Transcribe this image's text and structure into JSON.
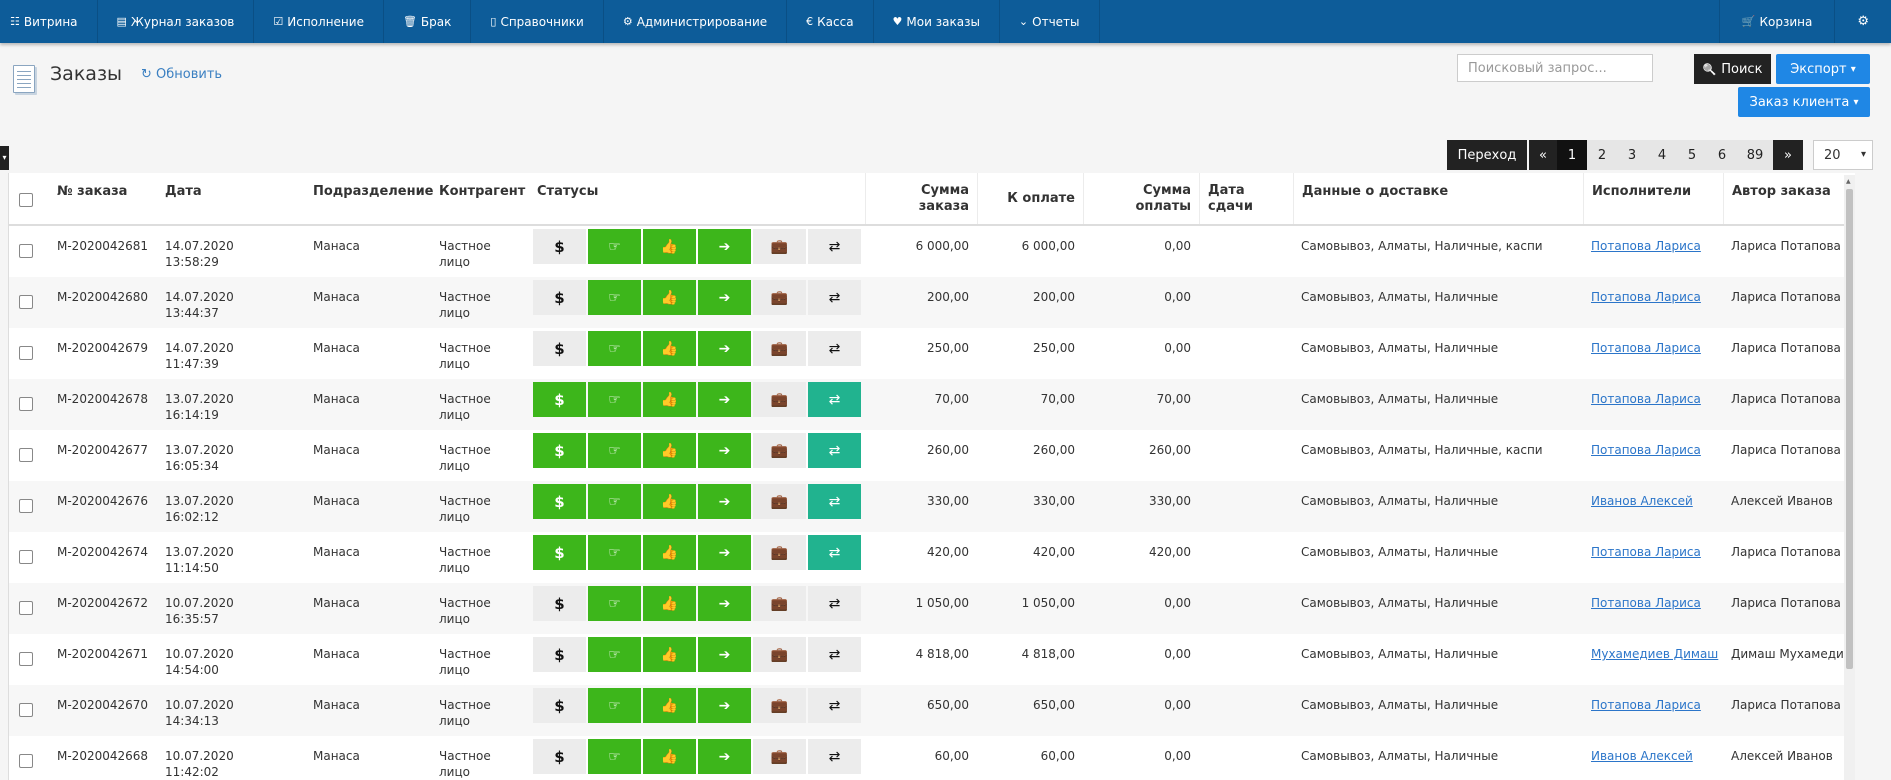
{
  "navbar": {
    "items": [
      {
        "icon": "grid-icon",
        "glyph": "☷",
        "label": "Витрина"
      },
      {
        "icon": "list-icon",
        "glyph": "▤",
        "label": "Журнал заказов"
      },
      {
        "icon": "check-square-icon",
        "glyph": "☑",
        "label": "Исполнение"
      },
      {
        "icon": "trash-icon",
        "glyph": "🗑",
        "label": "Брак"
      },
      {
        "icon": "book-icon",
        "glyph": "▯",
        "label": "Справочники"
      },
      {
        "icon": "gear-icon",
        "glyph": "⚙",
        "label": "Администрирование"
      },
      {
        "icon": "euro-icon",
        "glyph": "€",
        "label": "Касса"
      },
      {
        "icon": "heart-icon",
        "glyph": "♥",
        "label": "Мои заказы"
      },
      {
        "icon": "chevron-down-icon",
        "glyph": "⌄",
        "label": "Отчеты"
      }
    ],
    "cart_label": "Корзина",
    "cart_glyph": "🛒",
    "settings_glyph": "⚙"
  },
  "header": {
    "title": "Заказы",
    "refresh_label": "Обновить",
    "refresh_glyph": "↻",
    "search_placeholder": "Поисковый запрос...",
    "search_label": "Поиск",
    "search_glyph": "🔍",
    "export_label": "Экспорт",
    "client_order_label": "Заказ клиента",
    "caret_glyph": "▾"
  },
  "pagination": {
    "goto_label": "Переход",
    "prev_label": "«",
    "next_label": "»",
    "pages": [
      "1",
      "2",
      "3",
      "4",
      "5",
      "6",
      "89"
    ],
    "current_page": "1",
    "page_size": "20",
    "left_tab_glyph": "▾"
  },
  "table": {
    "headers": {
      "number": "№ заказа",
      "date": "Дата",
      "division": "Подразделение",
      "counterparty": "Контрагент",
      "statuses": "Статусы",
      "sum": "Сумма заказа",
      "to_pay": "К оплате",
      "paid": "Сумма оплаты",
      "due_date": "Дата сдачи",
      "delivery": "Данные о доставке",
      "executors": "Исполнители",
      "author": "Автор заказа"
    },
    "status_glyphs": [
      "$",
      "☞",
      "👍",
      "➔",
      "💼",
      "⇄"
    ],
    "rows": [
      {
        "number": "М-2020042681",
        "date": "14.07.2020",
        "time": "13:58:29",
        "division": "Манаса",
        "counterparty": "Частное лицо",
        "statuses": [
          "gray",
          "green",
          "green",
          "green",
          "gray",
          "gray"
        ],
        "sum": "6 000,00",
        "to_pay": "6 000,00",
        "paid": "0,00",
        "due_date": "",
        "delivery": "Самовывоз, Алматы, Наличные, каспи",
        "executor": "Потапова Лариса",
        "author": "Лариса Потапова"
      },
      {
        "number": "М-2020042680",
        "date": "14.07.2020",
        "time": "13:44:37",
        "division": "Манаса",
        "counterparty": "Частное лицо",
        "statuses": [
          "gray",
          "green",
          "green",
          "green",
          "gray",
          "gray"
        ],
        "sum": "200,00",
        "to_pay": "200,00",
        "paid": "0,00",
        "due_date": "",
        "delivery": "Самовывоз, Алматы, Наличные",
        "executor": "Потапова Лариса",
        "author": "Лариса Потапова"
      },
      {
        "number": "М-2020042679",
        "date": "14.07.2020",
        "time": "11:47:39",
        "division": "Манаса",
        "counterparty": "Частное лицо",
        "statuses": [
          "gray",
          "green",
          "green",
          "green",
          "gray",
          "gray"
        ],
        "sum": "250,00",
        "to_pay": "250,00",
        "paid": "0,00",
        "due_date": "",
        "delivery": "Самовывоз, Алматы, Наличные",
        "executor": "Потапова Лариса",
        "author": "Лариса Потапова"
      },
      {
        "number": "М-2020042678",
        "date": "13.07.2020",
        "time": "16:14:19",
        "division": "Манаса",
        "counterparty": "Частное лицо",
        "statuses": [
          "green",
          "green",
          "green",
          "green",
          "gray",
          "teal"
        ],
        "sum": "70,00",
        "to_pay": "70,00",
        "paid": "70,00",
        "due_date": "",
        "delivery": "Самовывоз, Алматы, Наличные",
        "executor": "Потапова Лариса",
        "author": "Лариса Потапова"
      },
      {
        "number": "М-2020042677",
        "date": "13.07.2020",
        "time": "16:05:34",
        "division": "Манаса",
        "counterparty": "Частное лицо",
        "statuses": [
          "green",
          "green",
          "green",
          "green",
          "gray",
          "teal"
        ],
        "sum": "260,00",
        "to_pay": "260,00",
        "paid": "260,00",
        "due_date": "",
        "delivery": "Самовывоз, Алматы, Наличные, каспи",
        "executor": "Потапова Лариса",
        "author": "Лариса Потапова"
      },
      {
        "number": "М-2020042676",
        "date": "13.07.2020",
        "time": "16:02:12",
        "division": "Манаса",
        "counterparty": "Частное лицо",
        "statuses": [
          "green",
          "green",
          "green",
          "green",
          "gray",
          "teal"
        ],
        "sum": "330,00",
        "to_pay": "330,00",
        "paid": "330,00",
        "due_date": "",
        "delivery": "Самовывоз, Алматы, Наличные",
        "executor": "Иванов Алексей",
        "author": "Алексей Иванов"
      },
      {
        "number": "М-2020042674",
        "date": "13.07.2020",
        "time": "11:14:50",
        "division": "Манаса",
        "counterparty": "Частное лицо",
        "statuses": [
          "green",
          "green",
          "green",
          "green",
          "gray",
          "teal"
        ],
        "sum": "420,00",
        "to_pay": "420,00",
        "paid": "420,00",
        "due_date": "",
        "delivery": "Самовывоз, Алматы, Наличные",
        "executor": "Потапова Лариса",
        "author": "Лариса Потапова"
      },
      {
        "number": "М-2020042672",
        "date": "10.07.2020",
        "time": "16:35:57",
        "division": "Манаса",
        "counterparty": "Частное лицо",
        "statuses": [
          "gray",
          "green",
          "green",
          "green",
          "gray",
          "gray"
        ],
        "sum": "1 050,00",
        "to_pay": "1 050,00",
        "paid": "0,00",
        "due_date": "",
        "delivery": "Самовывоз, Алматы, Наличные",
        "executor": "Потапова Лариса",
        "author": "Лариса Потапова"
      },
      {
        "number": "М-2020042671",
        "date": "10.07.2020",
        "time": "14:54:00",
        "division": "Манаса",
        "counterparty": "Частное лицо",
        "statuses": [
          "gray",
          "green",
          "green",
          "green",
          "gray",
          "gray"
        ],
        "sum": "4 818,00",
        "to_pay": "4 818,00",
        "paid": "0,00",
        "due_date": "",
        "delivery": "Самовывоз, Алматы, Наличные",
        "executor": "Мухамедиев Димаш",
        "author": "Димаш Мухамедиев"
      },
      {
        "number": "М-2020042670",
        "date": "10.07.2020",
        "time": "14:34:13",
        "division": "Манаса",
        "counterparty": "Частное лицо",
        "statuses": [
          "gray",
          "green",
          "green",
          "green",
          "gray",
          "gray"
        ],
        "sum": "650,00",
        "to_pay": "650,00",
        "paid": "0,00",
        "due_date": "",
        "delivery": "Самовывоз, Алматы, Наличные",
        "executor": "Потапова Лариса",
        "author": "Лариса Потапова"
      },
      {
        "number": "М-2020042668",
        "date": "10.07.2020",
        "time": "11:42:02",
        "division": "Манаса",
        "counterparty": "Частное лицо",
        "statuses": [
          "gray",
          "green",
          "green",
          "green",
          "gray",
          "gray"
        ],
        "sum": "60,00",
        "to_pay": "60,00",
        "paid": "0,00",
        "due_date": "",
        "delivery": "Самовывоз, Алматы, Наличные",
        "executor": "Иванов Алексей",
        "author": "Алексей Иванов"
      }
    ]
  },
  "colors": {
    "navbar": "#0d5c99",
    "status_green": "#3db61b",
    "status_teal": "#21b38f",
    "status_gray": "#ececec",
    "button_blue": "#1f87e5",
    "link": "#2b75c9"
  }
}
